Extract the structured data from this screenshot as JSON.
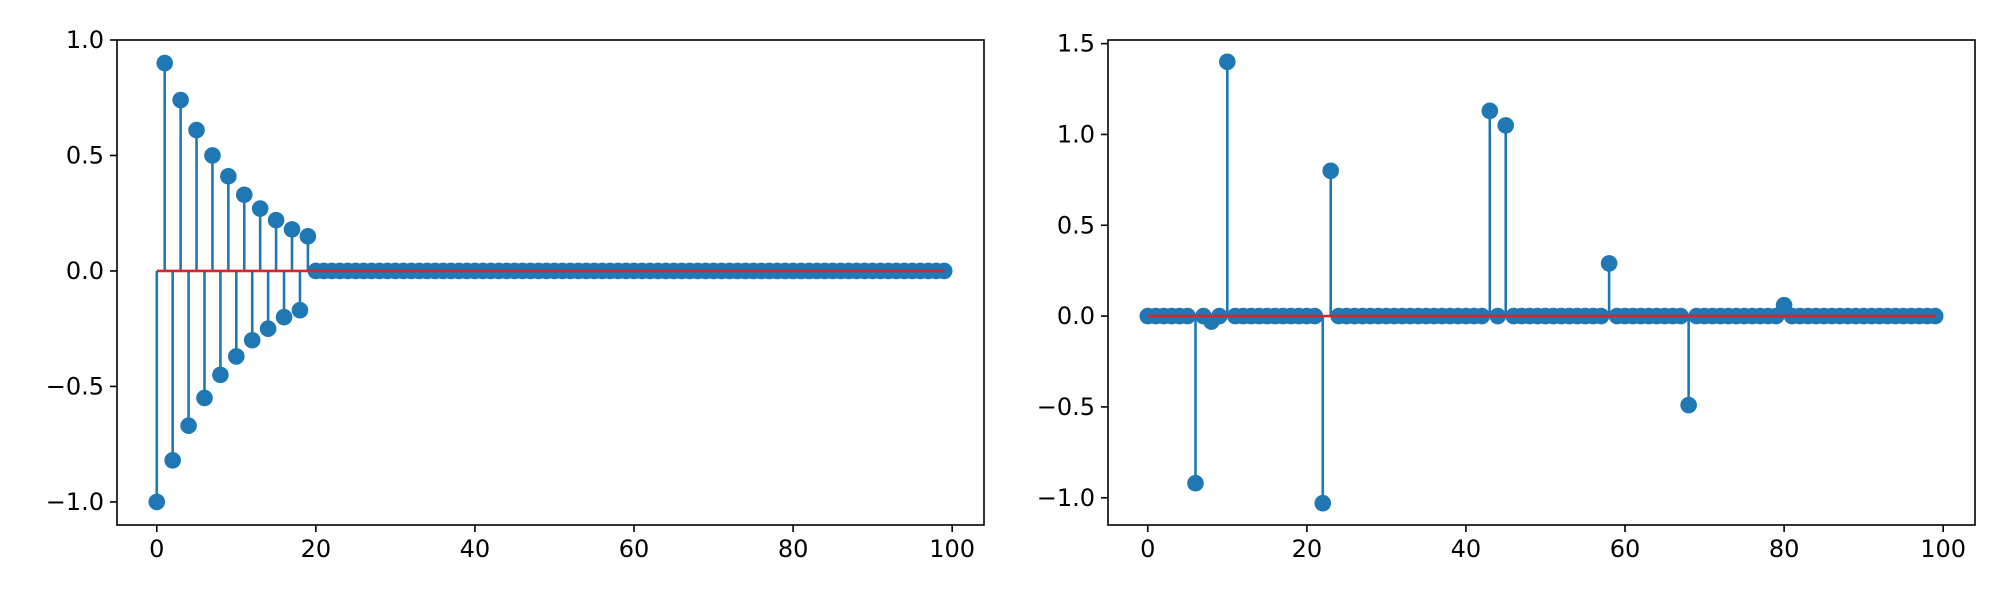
{
  "chart_data": [
    {
      "type": "stem",
      "title": "",
      "xlabel": "",
      "ylabel": "",
      "xlim": [
        -5,
        104
      ],
      "ylim": [
        -1.1,
        1.0
      ],
      "xticks": [
        0,
        20,
        40,
        60,
        80,
        100
      ],
      "yticks": [
        -1.0,
        -0.5,
        0.0,
        0.5,
        1.0
      ],
      "xtick_labels": [
        "0",
        "20",
        "40",
        "60",
        "80",
        "100"
      ],
      "ytick_labels": [
        "−1.0",
        "−0.5",
        "0.0",
        "0.5",
        "1.0"
      ],
      "grid": false,
      "baseline": 0,
      "colors": {
        "stem": "#1f77b4",
        "marker": "#1f77b4",
        "baseline": "#d62728"
      },
      "x_range": [
        0,
        99
      ],
      "nonzero_points": [
        [
          0,
          -1.0
        ],
        [
          1,
          0.9
        ],
        [
          2,
          -0.82
        ],
        [
          3,
          0.74
        ],
        [
          4,
          -0.67
        ],
        [
          5,
          0.61
        ],
        [
          6,
          -0.55
        ],
        [
          7,
          0.5
        ],
        [
          8,
          -0.45
        ],
        [
          9,
          0.41
        ],
        [
          10,
          -0.37
        ],
        [
          11,
          0.33
        ],
        [
          12,
          -0.3
        ],
        [
          13,
          0.27
        ],
        [
          14,
          -0.25
        ],
        [
          15,
          0.22
        ],
        [
          16,
          -0.2
        ],
        [
          17,
          0.18
        ],
        [
          18,
          -0.17
        ],
        [
          19,
          0.15
        ]
      ]
    },
    {
      "type": "stem",
      "title": "",
      "xlabel": "",
      "ylabel": "",
      "xlim": [
        -5,
        104
      ],
      "ylim": [
        -1.15,
        1.52
      ],
      "xticks": [
        0,
        20,
        40,
        60,
        80,
        100
      ],
      "yticks": [
        -1.0,
        -0.5,
        0.0,
        0.5,
        1.0,
        1.5
      ],
      "xtick_labels": [
        "0",
        "20",
        "40",
        "60",
        "80",
        "100"
      ],
      "ytick_labels": [
        "−1.0",
        "−0.5",
        "0.0",
        "0.5",
        "1.0",
        "1.5"
      ],
      "grid": false,
      "baseline": 0,
      "colors": {
        "stem": "#1f77b4",
        "marker": "#1f77b4",
        "baseline": "#d62728"
      },
      "x_range": [
        0,
        99
      ],
      "nonzero_points": [
        [
          6,
          -0.92
        ],
        [
          8,
          -0.03
        ],
        [
          10,
          1.4
        ],
        [
          22,
          -1.03
        ],
        [
          23,
          0.8
        ],
        [
          43,
          1.13
        ],
        [
          45,
          1.05
        ],
        [
          58,
          0.29
        ],
        [
          68,
          -0.49
        ],
        [
          80,
          0.06
        ]
      ]
    }
  ]
}
